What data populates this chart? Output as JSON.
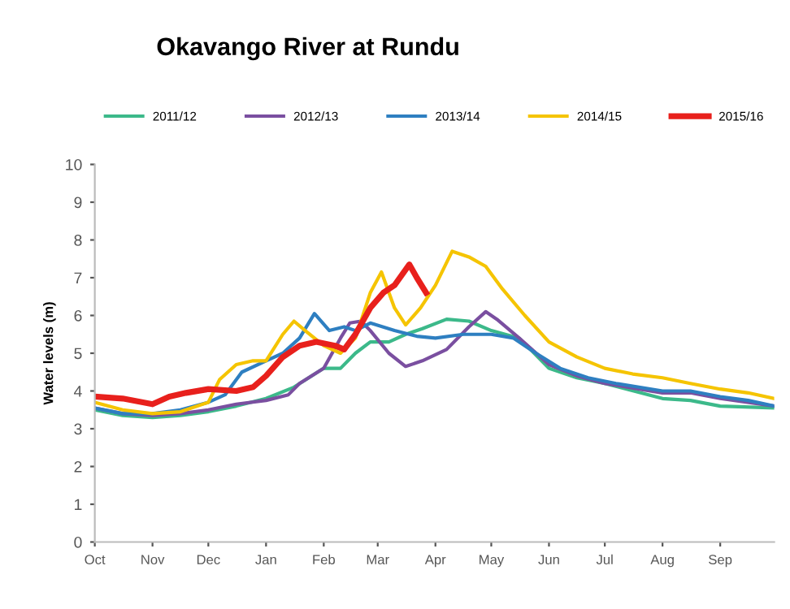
{
  "chart_data": {
    "type": "line",
    "title": "Okavango River at Rundu",
    "ylabel": "Water levels (m)",
    "xlim": [
      "2015-10-01",
      "2016-09-30"
    ],
    "ylim": [
      0,
      10
    ],
    "yticks": [
      0,
      1,
      2,
      3,
      4,
      5,
      6,
      7,
      8,
      9,
      10
    ],
    "xticks": [
      {
        "value": "2015-10-01",
        "label": "Oct"
      },
      {
        "value": "2015-11-01",
        "label": "Nov"
      },
      {
        "value": "2015-12-01",
        "label": "Dec"
      },
      {
        "value": "2016-01-01",
        "label": "Jan"
      },
      {
        "value": "2016-02-01",
        "label": "Feb"
      },
      {
        "value": "2016-03-01",
        "label": "Mar"
      },
      {
        "value": "2016-04-01",
        "label": "Apr"
      },
      {
        "value": "2016-05-01",
        "label": "May"
      },
      {
        "value": "2016-06-01",
        "label": "Jun"
      },
      {
        "value": "2016-07-01",
        "label": "Jul"
      },
      {
        "value": "2016-08-01",
        "label": "Aug"
      },
      {
        "value": "2016-09-01",
        "label": "Sep"
      }
    ],
    "grid": false,
    "legend": "top",
    "marker": "none",
    "line_style": "solid",
    "series": [
      {
        "name": "2011/12",
        "color": "#3cb98a",
        "x": [
          "2015-10-01",
          "2015-10-16",
          "2015-11-01",
          "2015-11-16",
          "2015-12-01",
          "2015-12-16",
          "2016-01-01",
          "2016-01-16",
          "2016-02-01",
          "2016-02-10",
          "2016-02-18",
          "2016-02-26",
          "2016-03-07",
          "2016-03-16",
          "2016-03-25",
          "2016-04-07",
          "2016-04-19",
          "2016-05-01",
          "2016-05-16",
          "2016-06-01",
          "2016-06-16",
          "2016-07-01",
          "2016-08-01",
          "2016-08-16",
          "2016-09-01",
          "2016-09-30"
        ],
        "values": [
          3.5,
          3.35,
          3.3,
          3.35,
          3.45,
          3.6,
          3.8,
          4.1,
          4.6,
          4.6,
          5.0,
          5.3,
          5.3,
          5.5,
          5.65,
          5.9,
          5.85,
          5.6,
          5.4,
          4.6,
          4.35,
          4.2,
          3.8,
          3.75,
          3.6,
          3.55
        ]
      },
      {
        "name": "2012/13",
        "color": "#7a4fa0",
        "x": [
          "2015-10-01",
          "2015-10-16",
          "2015-11-01",
          "2015-11-16",
          "2015-12-01",
          "2015-12-16",
          "2016-01-01",
          "2016-01-13",
          "2016-01-19",
          "2016-02-01",
          "2016-02-10",
          "2016-02-15",
          "2016-02-21",
          "2016-02-26",
          "2016-03-07",
          "2016-03-16",
          "2016-03-25",
          "2016-04-07",
          "2016-04-19",
          "2016-04-28",
          "2016-05-04",
          "2016-05-16",
          "2016-06-01",
          "2016-06-16",
          "2016-07-01",
          "2016-08-01",
          "2016-08-16",
          "2016-09-01",
          "2016-09-30"
        ],
        "values": [
          3.55,
          3.4,
          3.35,
          3.4,
          3.5,
          3.65,
          3.75,
          3.9,
          4.2,
          4.6,
          5.4,
          5.8,
          5.85,
          5.6,
          5.0,
          4.65,
          4.8,
          5.1,
          5.7,
          6.1,
          5.9,
          5.4,
          4.7,
          4.4,
          4.2,
          3.95,
          3.95,
          3.8,
          3.6
        ]
      },
      {
        "name": "2013/14",
        "color": "#2e7fc1",
        "x": [
          "2015-10-01",
          "2015-10-16",
          "2015-11-01",
          "2015-11-16",
          "2015-12-01",
          "2015-12-10",
          "2015-12-19",
          "2016-01-01",
          "2016-01-10",
          "2016-01-19",
          "2016-01-27",
          "2016-02-04",
          "2016-02-12",
          "2016-02-18",
          "2016-02-26",
          "2016-03-10",
          "2016-03-22",
          "2016-04-01",
          "2016-04-16",
          "2016-05-01",
          "2016-05-13",
          "2016-05-25",
          "2016-06-07",
          "2016-06-22",
          "2016-07-07",
          "2016-08-01",
          "2016-08-16",
          "2016-09-01",
          "2016-09-16",
          "2016-09-30"
        ],
        "values": [
          3.55,
          3.4,
          3.4,
          3.5,
          3.7,
          3.9,
          4.5,
          4.8,
          5.0,
          5.4,
          6.05,
          5.6,
          5.7,
          5.6,
          5.8,
          5.6,
          5.45,
          5.4,
          5.5,
          5.5,
          5.4,
          5.0,
          4.6,
          4.35,
          4.2,
          4.0,
          4.0,
          3.85,
          3.75,
          3.6
        ]
      },
      {
        "name": "2014/15",
        "color": "#f5c400",
        "x": [
          "2015-10-01",
          "2015-10-16",
          "2015-11-01",
          "2015-11-16",
          "2015-12-01",
          "2015-12-07",
          "2015-12-16",
          "2015-12-25",
          "2016-01-01",
          "2016-01-10",
          "2016-01-16",
          "2016-01-22",
          "2016-02-01",
          "2016-02-10",
          "2016-02-18",
          "2016-02-26",
          "2016-03-03",
          "2016-03-10",
          "2016-03-16",
          "2016-03-24",
          "2016-04-01",
          "2016-04-10",
          "2016-04-19",
          "2016-04-28",
          "2016-05-07",
          "2016-05-19",
          "2016-06-01",
          "2016-06-16",
          "2016-07-01",
          "2016-07-16",
          "2016-08-01",
          "2016-08-16",
          "2016-09-01",
          "2016-09-16",
          "2016-09-30"
        ],
        "values": [
          3.7,
          3.5,
          3.4,
          3.45,
          3.7,
          4.3,
          4.7,
          4.8,
          4.8,
          5.5,
          5.85,
          5.6,
          5.2,
          5.0,
          5.4,
          6.6,
          7.15,
          6.2,
          5.75,
          6.2,
          6.8,
          7.7,
          7.55,
          7.3,
          6.7,
          6.0,
          5.3,
          4.9,
          4.6,
          4.45,
          4.35,
          4.2,
          4.05,
          3.95,
          3.8
        ]
      },
      {
        "name": "2015/16",
        "color": "#e8201c",
        "x": [
          "2015-10-01",
          "2015-10-16",
          "2015-11-01",
          "2015-11-10",
          "2015-11-19",
          "2015-12-01",
          "2015-12-16",
          "2015-12-25",
          "2016-01-01",
          "2016-01-10",
          "2016-01-19",
          "2016-01-28",
          "2016-02-07",
          "2016-02-12",
          "2016-02-18",
          "2016-02-26",
          "2016-03-04",
          "2016-03-10",
          "2016-03-18",
          "2016-03-22",
          "2016-03-27"
        ],
        "values": [
          3.85,
          3.8,
          3.65,
          3.85,
          3.95,
          4.05,
          4.0,
          4.1,
          4.4,
          4.9,
          5.2,
          5.3,
          5.2,
          5.1,
          5.5,
          6.2,
          6.6,
          6.8,
          7.35,
          7.0,
          6.6
        ]
      }
    ]
  }
}
